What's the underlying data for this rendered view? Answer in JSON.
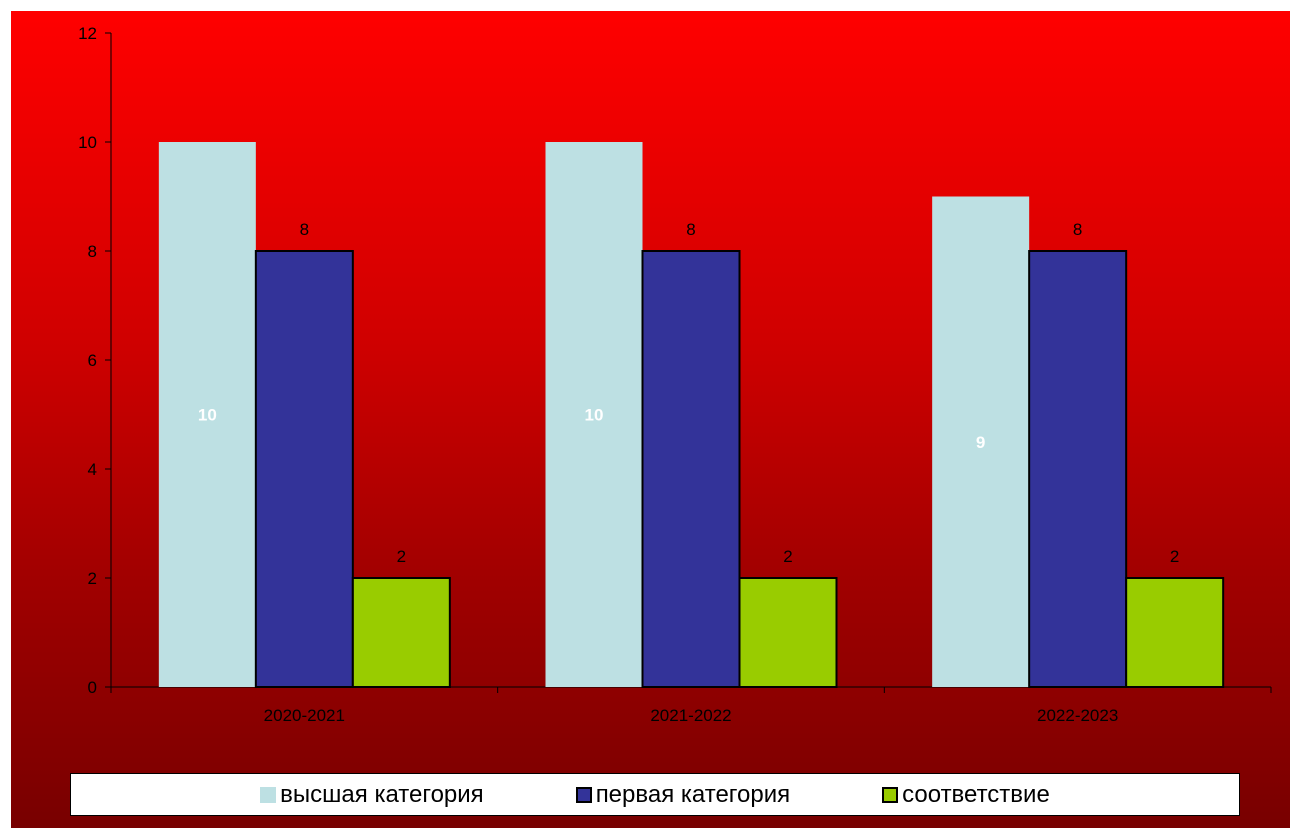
{
  "chart_data": {
    "type": "bar",
    "categories": [
      "2020-2021",
      "2021-2022",
      "2022-2023"
    ],
    "series": [
      {
        "name": "высшая категория",
        "values": [
          10,
          10,
          9
        ],
        "color": "#bde0e3",
        "label_style": "inside"
      },
      {
        "name": "первая категория",
        "values": [
          8,
          8,
          8
        ],
        "color": "#333399",
        "label_style": "above"
      },
      {
        "name": "соответствие",
        "values": [
          2,
          2,
          2
        ],
        "color": "#99cc00",
        "label_style": "above"
      }
    ],
    "ylim": [
      0,
      12
    ],
    "yticks": [
      0,
      2,
      4,
      6,
      8,
      10,
      12
    ],
    "title": "",
    "xlabel": "",
    "ylabel": "",
    "grid": false,
    "legend_position": "bottom",
    "background": "red-gradient"
  }
}
